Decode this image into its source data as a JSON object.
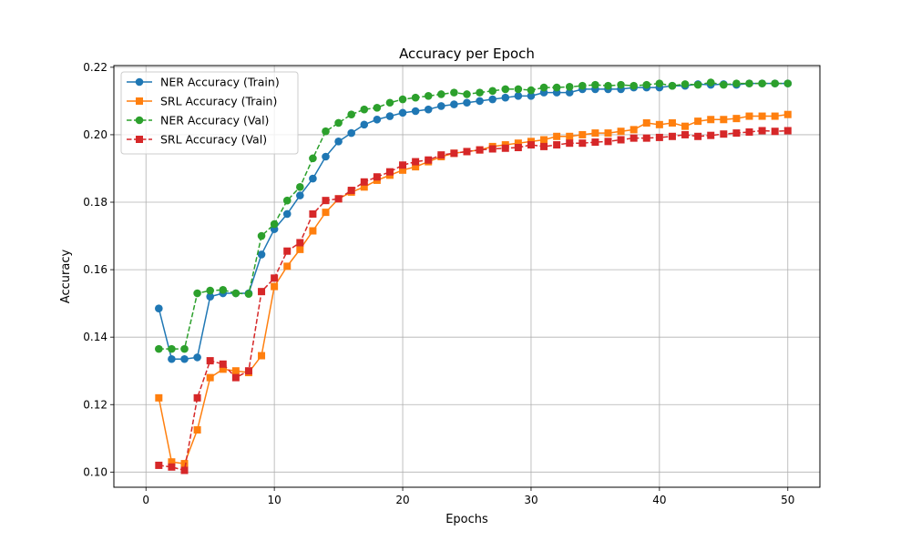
{
  "chart_data": {
    "type": "line",
    "title": "Accuracy per Epoch",
    "xlabel": "Epochs",
    "ylabel": "Accuracy",
    "xlim": [
      -2.5,
      52.5
    ],
    "ylim": [
      0.0955,
      0.2205
    ],
    "xticks": [
      0,
      10,
      20,
      30,
      40,
      50
    ],
    "xtick_labels": [
      "0",
      "10",
      "20",
      "30",
      "40",
      "50"
    ],
    "yticks": [
      0.1,
      0.12,
      0.14,
      0.16,
      0.18,
      0.2,
      0.22
    ],
    "ytick_labels": [
      "0.10",
      "0.12",
      "0.14",
      "0.16",
      "0.18",
      "0.20",
      "0.22"
    ],
    "grid": true,
    "legend_position": "top-left",
    "x": [
      1,
      2,
      3,
      4,
      5,
      6,
      7,
      8,
      9,
      10,
      11,
      12,
      13,
      14,
      15,
      16,
      17,
      18,
      19,
      20,
      21,
      22,
      23,
      24,
      25,
      26,
      27,
      28,
      29,
      30,
      31,
      32,
      33,
      34,
      35,
      36,
      37,
      38,
      39,
      40,
      41,
      42,
      43,
      44,
      45,
      46,
      47,
      48,
      49,
      50
    ],
    "series": [
      {
        "name": "NER Accuracy (Train)",
        "color": "#1f77b4",
        "marker": "circle",
        "linestyle": "solid",
        "values": [
          0.1485,
          0.1335,
          0.1335,
          0.134,
          0.152,
          0.153,
          0.153,
          0.153,
          0.1645,
          0.172,
          0.1765,
          0.182,
          0.187,
          0.1935,
          0.198,
          0.2005,
          0.203,
          0.2045,
          0.2055,
          0.2065,
          0.207,
          0.2075,
          0.2085,
          0.209,
          0.2095,
          0.21,
          0.2105,
          0.211,
          0.2115,
          0.2115,
          0.2125,
          0.2125,
          0.2125,
          0.2135,
          0.2135,
          0.2135,
          0.2135,
          0.214,
          0.214,
          0.214,
          0.2145,
          0.2145,
          0.215,
          0.2148,
          0.215,
          0.2148,
          0.2152,
          0.2152,
          0.2152,
          0.2152
        ]
      },
      {
        "name": "SRL Accuracy (Train)",
        "color": "#ff7f0e",
        "marker": "square",
        "linestyle": "solid",
        "values": [
          0.122,
          0.103,
          0.1025,
          0.1125,
          0.128,
          0.1305,
          0.13,
          0.1295,
          0.1345,
          0.155,
          0.161,
          0.166,
          0.1715,
          0.177,
          0.181,
          0.183,
          0.1845,
          0.1865,
          0.188,
          0.1895,
          0.1905,
          0.192,
          0.1935,
          0.1945,
          0.195,
          0.1955,
          0.1965,
          0.197,
          0.1975,
          0.198,
          0.1985,
          0.1995,
          0.1995,
          0.2,
          0.2005,
          0.2005,
          0.201,
          0.2015,
          0.2035,
          0.203,
          0.2035,
          0.2025,
          0.204,
          0.2045,
          0.2045,
          0.2048,
          0.2055,
          0.2055,
          0.2055,
          0.206
        ]
      },
      {
        "name": "NER Accuracy (Val)",
        "color": "#2ca02c",
        "marker": "circle",
        "linestyle": "dashed",
        "values": [
          0.1365,
          0.1365,
          0.1365,
          0.153,
          0.1538,
          0.154,
          0.153,
          0.1528,
          0.17,
          0.1735,
          0.1805,
          0.1845,
          0.193,
          0.201,
          0.2035,
          0.206,
          0.2075,
          0.208,
          0.2095,
          0.2105,
          0.211,
          0.2115,
          0.212,
          0.2125,
          0.212,
          0.2125,
          0.213,
          0.2135,
          0.2135,
          0.2132,
          0.214,
          0.214,
          0.2142,
          0.2145,
          0.2148,
          0.2145,
          0.2148,
          0.2145,
          0.2148,
          0.2152,
          0.2145,
          0.215,
          0.2148,
          0.2155,
          0.2148,
          0.2152,
          0.2152,
          0.2152,
          0.2152,
          0.2152
        ]
      },
      {
        "name": "SRL Accuracy (Val)",
        "color": "#d62728",
        "marker": "square",
        "linestyle": "dashed",
        "values": [
          0.102,
          0.1015,
          0.1005,
          0.122,
          0.133,
          0.132,
          0.128,
          0.13,
          0.1535,
          0.1575,
          0.1655,
          0.168,
          0.1765,
          0.1805,
          0.181,
          0.1835,
          0.186,
          0.1875,
          0.189,
          0.191,
          0.192,
          0.1925,
          0.194,
          0.1945,
          0.195,
          0.1955,
          0.1958,
          0.196,
          0.1962,
          0.197,
          0.1965,
          0.197,
          0.1975,
          0.1975,
          0.1978,
          0.198,
          0.1985,
          0.199,
          0.199,
          0.1992,
          0.1995,
          0.2,
          0.1995,
          0.1998,
          0.2002,
          0.2005,
          0.2008,
          0.2012,
          0.201,
          0.2012
        ]
      }
    ]
  }
}
